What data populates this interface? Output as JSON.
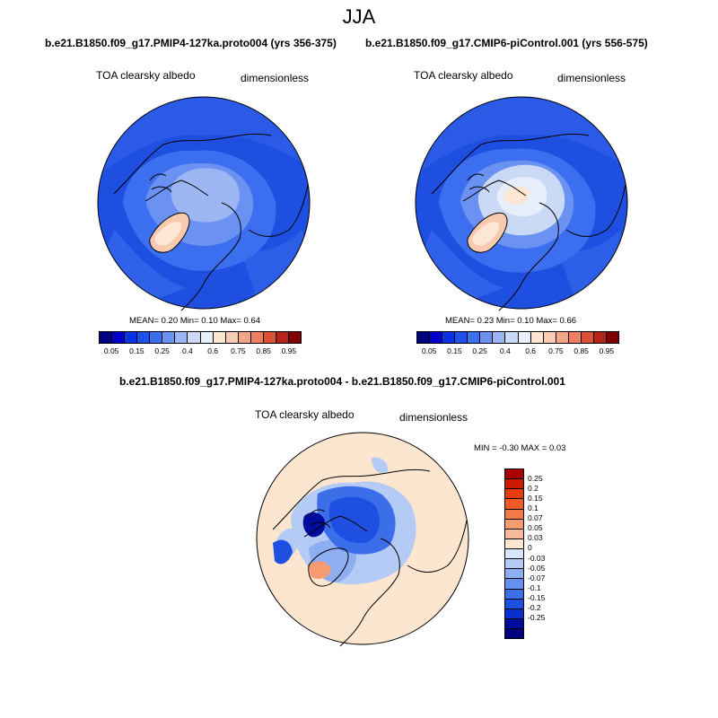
{
  "season": "JJA",
  "panel_left": {
    "case": "b.e21.B1850.f09_g17.PMIP4-127ka.proto004 (yrs 356-375)",
    "variable": "TOA clearsky albedo",
    "units": "dimensionless",
    "stats": "MEAN=   0.20  Min=   0.10  Max=   0.64"
  },
  "panel_right": {
    "case": "b.e21.B1850.f09_g17.CMIP6-piControl.001 (yrs 556-575)",
    "variable": "TOA clearsky albedo",
    "units": "dimensionless",
    "stats": "MEAN=   0.23  Min=   0.10  Max=   0.66"
  },
  "panel_diff": {
    "case": "b.e21.B1850.f09_g17.PMIP4-127ka.proto004 - b.e21.B1850.f09_g17.CMIP6-piControl.001",
    "variable": "TOA clearsky albedo",
    "units": "dimensionless",
    "stats": "MIN =  -0.30 MAX =   0.03"
  },
  "colorbar_main": {
    "colors": [
      "#00007f",
      "#0000c8",
      "#0a32e6",
      "#1e50eb",
      "#3c6ef0",
      "#6b92f2",
      "#9cb6f4",
      "#c9d9f6",
      "#e7effb",
      "#fde6d4",
      "#f8cbb0",
      "#f3a685",
      "#ec8060",
      "#dc5236",
      "#b42416",
      "#7f0000"
    ],
    "tick_labels": [
      "0.05",
      "0.15",
      "0.25",
      "0.4",
      "0.6",
      "0.75",
      "0.85",
      "0.95"
    ]
  },
  "colorbar_diff": {
    "colors": [
      "#aa0000",
      "#cc1a00",
      "#e43c10",
      "#f05a28",
      "#f37a48",
      "#f69a70",
      "#f8bb9a",
      "#fde6d0",
      "#d8e6fb",
      "#b4cbf6",
      "#8eaef2",
      "#6690ee",
      "#3d6eea",
      "#1f4fe0",
      "#0a2fcf",
      "#000d9c",
      "#000080"
    ],
    "tick_labels": [
      "0.25",
      "0.2",
      "0.15",
      "0.1",
      "0.07",
      "0.05",
      "0.03",
      "0",
      "-0.03",
      "-0.05",
      "-0.07",
      "-0.1",
      "-0.15",
      "-0.2",
      "-0.25"
    ]
  }
}
